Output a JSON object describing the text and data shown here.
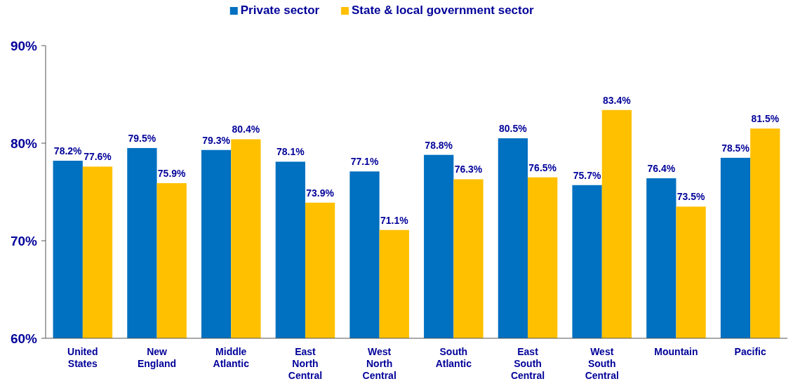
{
  "chart_data": {
    "type": "bar",
    "categories": [
      "United States",
      "New England",
      "Middle Atlantic",
      "East North Central",
      "West North Central",
      "South Atlantic",
      "East South Central",
      "West South Central",
      "Mountain",
      "Pacific"
    ],
    "series": [
      {
        "name": "Private sector",
        "color": "#0070c0",
        "values": [
          78.2,
          79.5,
          79.3,
          78.1,
          77.1,
          78.8,
          80.5,
          75.7,
          76.4,
          78.5
        ],
        "value_labels": [
          "78.2%",
          "79.5%",
          "79.3%",
          "78.1%",
          "77.1%",
          "78.8%",
          "80.5%",
          "75.7%",
          "76.4%",
          "78.5%"
        ]
      },
      {
        "name": "State & local government sector",
        "color": "#ffc000",
        "values": [
          77.6,
          75.9,
          80.4,
          73.9,
          71.1,
          76.3,
          76.5,
          83.4,
          73.5,
          81.5
        ],
        "value_labels": [
          "77.6%",
          "75.9%",
          "80.4%",
          "73.9%",
          "71.1%",
          "76.3%",
          "76.5%",
          "83.4%",
          "73.5%",
          "81.5%"
        ]
      }
    ],
    "ylim": [
      60,
      90
    ],
    "yticks": [
      {
        "value": 60,
        "label": "60%"
      },
      {
        "value": 70,
        "label": "70%"
      },
      {
        "value": 80,
        "label": "80%"
      },
      {
        "value": 90,
        "label": "90%"
      }
    ],
    "grid": false,
    "legend": "top"
  }
}
